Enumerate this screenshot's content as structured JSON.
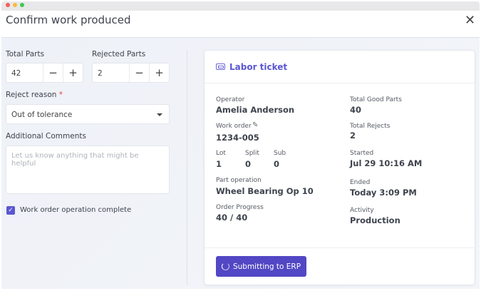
{
  "window": {
    "title": "Confirm work produced",
    "close_icon": "close-icon"
  },
  "form": {
    "total_parts": {
      "label": "Total Parts",
      "value": "42",
      "minus": "−",
      "plus": "+"
    },
    "rejected_parts": {
      "label": "Rejected Parts",
      "value": "2",
      "minus": "−",
      "plus": "+"
    },
    "reject_reason": {
      "label": "Reject reason",
      "required": "*",
      "value": "Out of tolerance"
    },
    "comments": {
      "label": "Additional Comments",
      "placeholder": "Let us know anything that might be helpful"
    },
    "complete": {
      "label": "Work order operation complete",
      "checked": true
    }
  },
  "ticket": {
    "title": "Labor ticket",
    "operator": {
      "label": "Operator",
      "value": "Amelia Anderson"
    },
    "work_order": {
      "label": "Work order",
      "value": "1234-005"
    },
    "lot": {
      "label": "Lot",
      "value": "1"
    },
    "split": {
      "label": "Split",
      "value": "0"
    },
    "sub": {
      "label": "Sub",
      "value": "0"
    },
    "part_operation": {
      "label": "Part operation",
      "value": "Wheel Bearing Op 10"
    },
    "order_progress": {
      "label": "Order Progress",
      "value": "40 / 40"
    },
    "total_good": {
      "label": "Total Good Parts",
      "value": "40"
    },
    "total_rejects": {
      "label": "Total Rejects",
      "value": "2"
    },
    "started": {
      "label": "Started",
      "value": "Jul 29 10:16 AM"
    },
    "ended": {
      "label": "Ended",
      "value": "Today 3:09 PM"
    },
    "activity": {
      "label": "Activity",
      "value": "Production"
    },
    "submit_label": "Submitting to ERP"
  },
  "colors": {
    "accent": "#5247c4",
    "required": "#e5484d"
  }
}
